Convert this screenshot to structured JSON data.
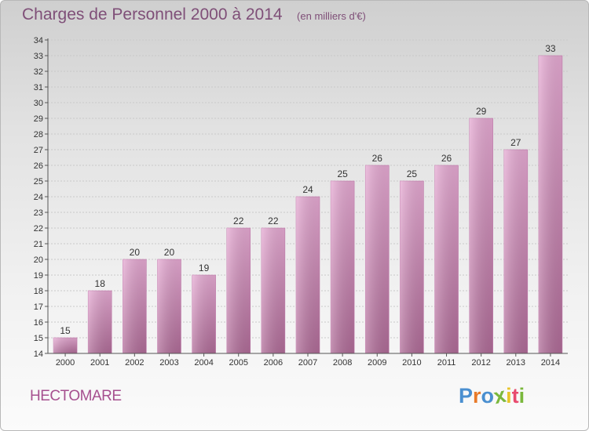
{
  "chart_data": {
    "type": "bar",
    "title": "Charges de Personnel 2000 à 2014",
    "subtitle": "(en milliers d'€)",
    "categories": [
      "2000",
      "2001",
      "2002",
      "2003",
      "2004",
      "2005",
      "2006",
      "2007",
      "2008",
      "2009",
      "2010",
      "2011",
      "2012",
      "2013",
      "2014"
    ],
    "values": [
      15,
      18,
      20,
      20,
      19,
      22,
      22,
      24,
      25,
      26,
      25,
      26,
      29,
      27,
      33
    ],
    "ylim": [
      14,
      34
    ],
    "yticks": [
      14,
      15,
      16,
      17,
      18,
      19,
      20,
      21,
      22,
      23,
      24,
      25,
      26,
      27,
      28,
      29,
      30,
      31,
      32,
      33,
      34
    ],
    "grid": true,
    "legend": "none",
    "bar_color": "#d98cbd"
  },
  "footer": {
    "commune": "HECTOMARE",
    "logo_text": "Proxiti",
    "logo_colors": [
      "#4a8fd0",
      "#e87a2a",
      "#4a8fd0",
      "#7ab83c",
      "#e8c52a",
      "#e84a6e",
      "#7ab83c"
    ]
  }
}
